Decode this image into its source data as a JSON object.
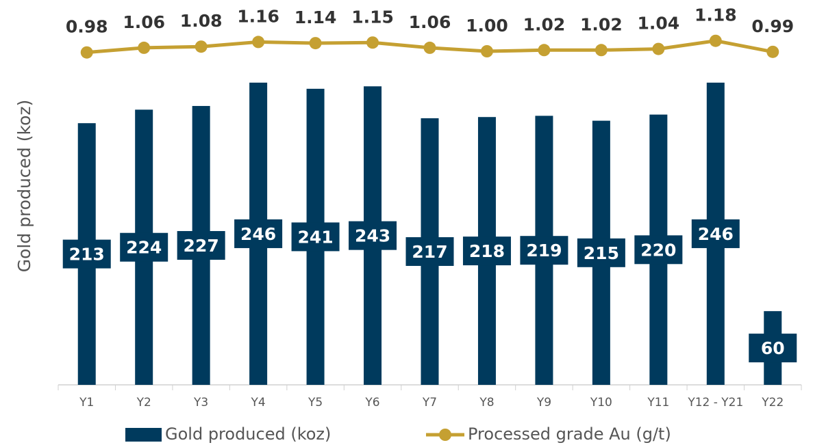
{
  "chart_data": {
    "type": "bar",
    "y_label": "Gold produced (koz)",
    "categories": [
      "Y1",
      "Y2",
      "Y3",
      "Y4",
      "Y5",
      "Y6",
      "Y7",
      "Y8",
      "Y9",
      "Y10",
      "Y11",
      "Y12 - Y21",
      "Y22"
    ],
    "series": [
      {
        "name": "Gold produced (koz)",
        "type": "bar",
        "color": "#003a5d",
        "values": [
          213,
          224,
          227,
          246,
          241,
          243,
          217,
          218,
          219,
          215,
          220,
          246,
          60
        ]
      },
      {
        "name": "Processed grade Au (g/t)",
        "type": "line",
        "color": "#c5a032",
        "axis": "y2",
        "values": [
          0.98,
          1.06,
          1.08,
          1.16,
          1.14,
          1.15,
          1.06,
          1.0,
          1.02,
          1.02,
          1.04,
          1.18,
          0.99
        ],
        "value_labels": [
          "0.98",
          "1.06",
          "1.08",
          "1.16",
          "1.14",
          "1.15",
          "1.06",
          "1.00",
          "1.02",
          "1.02",
          "1.04",
          "1.18",
          "0.99"
        ]
      }
    ],
    "ylim": [
      0,
      250
    ],
    "y2lim": [
      0,
      1.4
    ],
    "legend": "bottom"
  }
}
